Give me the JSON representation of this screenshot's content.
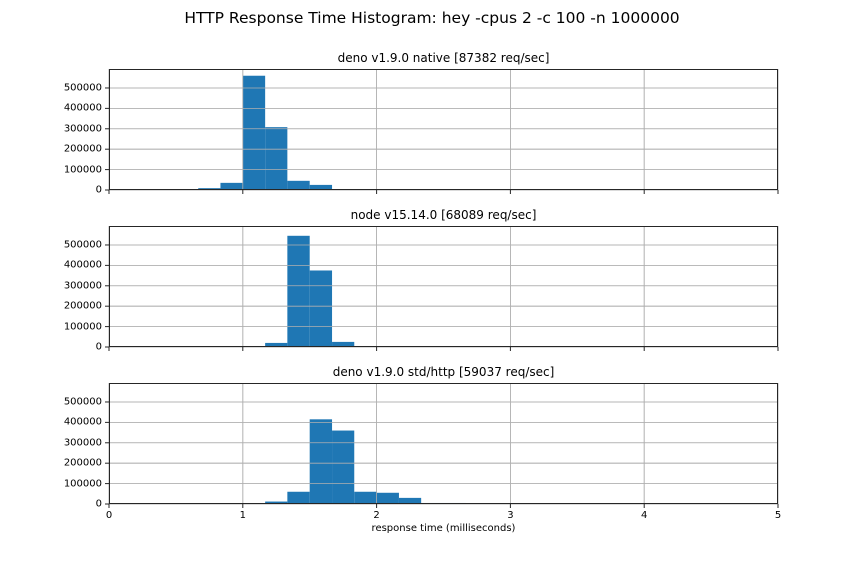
{
  "suptitle": "HTTP Response Time Histogram: hey -cpus 2 -c 100 -n 1000000",
  "xlabel": "response time (milliseconds)",
  "colors": {
    "bar": "#1f77b4",
    "grid": "#b0b0b0",
    "axis": "#262626"
  },
  "xticks": [
    "0",
    "1",
    "2",
    "3",
    "4",
    "5"
  ],
  "yticks": [
    "0",
    "100000",
    "200000",
    "300000",
    "400000",
    "500000"
  ],
  "chart_data": [
    {
      "type": "bar",
      "title": "deno v1.9.0 native [87382 req/sec]",
      "xlabel": "",
      "ylabel": "",
      "xlim": [
        0,
        5
      ],
      "ylim": [
        0,
        593000
      ],
      "grid": true,
      "bin_width": 0.1667,
      "bins": [
        {
          "start": 0.5,
          "end": 0.667,
          "count": 3000
        },
        {
          "start": 0.667,
          "end": 0.833,
          "count": 9000
        },
        {
          "start": 0.833,
          "end": 1.0,
          "count": 35000
        },
        {
          "start": 1.0,
          "end": 1.167,
          "count": 560000
        },
        {
          "start": 1.167,
          "end": 1.333,
          "count": 308000
        },
        {
          "start": 1.333,
          "end": 1.5,
          "count": 45000
        },
        {
          "start": 1.5,
          "end": 1.667,
          "count": 25000
        },
        {
          "start": 1.667,
          "end": 1.833,
          "count": 3000
        }
      ]
    },
    {
      "type": "bar",
      "title": "node v15.14.0 [68089 req/sec]",
      "xlabel": "",
      "ylabel": "",
      "xlim": [
        0,
        5
      ],
      "ylim": [
        0,
        593000
      ],
      "grid": true,
      "bin_width": 0.1667,
      "bins": [
        {
          "start": 0.5,
          "end": 0.667,
          "count": 2000
        },
        {
          "start": 0.667,
          "end": 0.833,
          "count": 2000
        },
        {
          "start": 0.833,
          "end": 1.0,
          "count": 2000
        },
        {
          "start": 1.0,
          "end": 1.167,
          "count": 2000
        },
        {
          "start": 1.167,
          "end": 1.333,
          "count": 20000
        },
        {
          "start": 1.333,
          "end": 1.5,
          "count": 545000
        },
        {
          "start": 1.5,
          "end": 1.667,
          "count": 375000
        },
        {
          "start": 1.667,
          "end": 1.833,
          "count": 25000
        },
        {
          "start": 2.0,
          "end": 2.167,
          "count": 3000
        },
        {
          "start": 2.667,
          "end": 2.833,
          "count": 2500
        },
        {
          "start": 2.833,
          "end": 3.0,
          "count": 2500
        }
      ]
    },
    {
      "type": "bar",
      "title": "deno v1.9.0 std/http [59037 req/sec]",
      "xlabel": "response time (milliseconds)",
      "ylabel": "",
      "xlim": [
        0,
        5
      ],
      "ylim": [
        0,
        593000
      ],
      "grid": true,
      "bin_width": 0.1667,
      "bins": [
        {
          "start": 1.167,
          "end": 1.333,
          "count": 12000
        },
        {
          "start": 1.333,
          "end": 1.5,
          "count": 60000
        },
        {
          "start": 1.5,
          "end": 1.667,
          "count": 415000
        },
        {
          "start": 1.667,
          "end": 1.833,
          "count": 360000
        },
        {
          "start": 1.833,
          "end": 2.0,
          "count": 60000
        },
        {
          "start": 2.0,
          "end": 2.167,
          "count": 55000
        },
        {
          "start": 2.167,
          "end": 2.333,
          "count": 30000
        },
        {
          "start": 2.333,
          "end": 2.5,
          "count": 5000
        },
        {
          "start": 2.5,
          "end": 2.667,
          "count": 5000
        }
      ]
    }
  ]
}
